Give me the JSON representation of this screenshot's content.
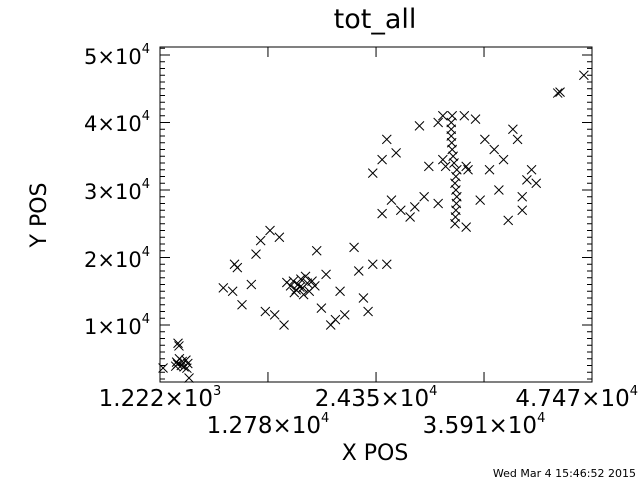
{
  "chart_data": {
    "type": "scatter",
    "title": "tot_all",
    "xlabel": "X POS",
    "ylabel": "Y POS",
    "xlim": [
      1222,
      47470
    ],
    "ylim": [
      1556,
      51185
    ],
    "grid": false,
    "marker": "x",
    "color": "#000000",
    "xticks": [
      {
        "mant": "1.222×10",
        "exp": "3",
        "value": 1222
      },
      {
        "mant": "1.278×10",
        "exp": "4",
        "value": 12780
      },
      {
        "mant": "2.435×10",
        "exp": "4",
        "value": 24350
      },
      {
        "mant": "3.591×10",
        "exp": "4",
        "value": 35910
      },
      {
        "mant": "4.747×10",
        "exp": "4",
        "value": 47470
      }
    ],
    "yticks": [
      {
        "mant": "1×10",
        "exp": "4",
        "value": 10000
      },
      {
        "mant": "2×10",
        "exp": "4",
        "value": 20000
      },
      {
        "mant": "3×10",
        "exp": "4",
        "value": 30000
      },
      {
        "mant": "4×10",
        "exp": "4",
        "value": 40000
      },
      {
        "mant": "5×10",
        "exp": "4",
        "value": 50000
      }
    ],
    "points": [
      [
        3000,
        4500
      ],
      [
        3500,
        4000
      ],
      [
        4000,
        4800
      ],
      [
        3300,
        5000
      ],
      [
        3800,
        3800
      ],
      [
        4200,
        4300
      ],
      [
        2900,
        3900
      ],
      [
        3600,
        4600
      ],
      [
        3100,
        4200
      ],
      [
        4100,
        3600
      ],
      [
        3150,
        7300
      ],
      [
        3250,
        6900
      ],
      [
        1550,
        3630
      ],
      [
        4330,
        2150
      ],
      [
        43800,
        44360
      ],
      [
        44050,
        44500
      ],
      [
        46600,
        47000
      ],
      [
        15500,
        16500
      ],
      [
        16000,
        16000
      ],
      [
        16500,
        15500
      ],
      [
        17000,
        16200
      ],
      [
        15800,
        15200
      ],
      [
        16300,
        16800
      ],
      [
        17200,
        15000
      ],
      [
        15200,
        15800
      ],
      [
        16800,
        17200
      ],
      [
        15600,
        14800
      ],
      [
        16200,
        15600
      ],
      [
        17500,
        16500
      ],
      [
        14800,
        16300
      ],
      [
        16600,
        14500
      ],
      [
        17800,
        15800
      ],
      [
        8000,
        15500
      ],
      [
        9000,
        15000
      ],
      [
        9500,
        18500
      ],
      [
        9200,
        19000
      ],
      [
        10000,
        13000
      ],
      [
        11500,
        20500
      ],
      [
        12000,
        22500
      ],
      [
        13000,
        24000
      ],
      [
        14000,
        23000
      ],
      [
        13500,
        11500
      ],
      [
        14500,
        10000
      ],
      [
        12500,
        12000
      ],
      [
        18000,
        21000
      ],
      [
        19000,
        17500
      ],
      [
        19500,
        10000
      ],
      [
        20000,
        10800
      ],
      [
        21000,
        11500
      ],
      [
        22000,
        21500
      ],
      [
        22500,
        18000
      ],
      [
        23000,
        14000
      ],
      [
        23500,
        12000
      ],
      [
        24000,
        19000
      ],
      [
        25500,
        19000
      ],
      [
        11000,
        16000
      ],
      [
        20500,
        15000
      ],
      [
        18500,
        12500
      ],
      [
        32800,
        25000
      ],
      [
        32850,
        26000
      ],
      [
        32900,
        27000
      ],
      [
        32950,
        28000
      ],
      [
        33000,
        29000
      ],
      [
        32900,
        30000
      ],
      [
        32800,
        31000
      ],
      [
        32900,
        32000
      ],
      [
        33000,
        33000
      ],
      [
        32700,
        34000
      ],
      [
        32600,
        35000
      ],
      [
        32500,
        36000
      ],
      [
        32450,
        37000
      ],
      [
        32400,
        38000
      ],
      [
        32400,
        39000
      ],
      [
        32400,
        40000
      ],
      [
        32500,
        41000
      ],
      [
        31500,
        41000
      ],
      [
        33800,
        41000
      ],
      [
        31800,
        33500
      ],
      [
        34200,
        33000
      ],
      [
        24000,
        32500
      ],
      [
        25000,
        34500
      ],
      [
        25500,
        37500
      ],
      [
        26500,
        35500
      ],
      [
        27000,
        27000
      ],
      [
        28000,
        26000
      ],
      [
        29000,
        39500
      ],
      [
        30000,
        33500
      ],
      [
        29500,
        29000
      ],
      [
        31000,
        40000
      ],
      [
        31500,
        34500
      ],
      [
        35000,
        40500
      ],
      [
        36000,
        37500
      ],
      [
        37000,
        36000
      ],
      [
        37500,
        30000
      ],
      [
        38500,
        25500
      ],
      [
        39000,
        39000
      ],
      [
        39500,
        37500
      ],
      [
        40000,
        29000
      ],
      [
        40500,
        31500
      ],
      [
        41000,
        33000
      ],
      [
        41500,
        31000
      ],
      [
        40000,
        27000
      ],
      [
        36500,
        33000
      ],
      [
        34000,
        33500
      ],
      [
        31000,
        28000
      ],
      [
        34000,
        24500
      ],
      [
        35500,
        28500
      ],
      [
        38000,
        34500
      ],
      [
        25000,
        26500
      ],
      [
        26000,
        28500
      ],
      [
        28500,
        27500
      ]
    ]
  },
  "footer": {
    "timestamp": "Wed Mar  4 15:46:52 2015"
  }
}
